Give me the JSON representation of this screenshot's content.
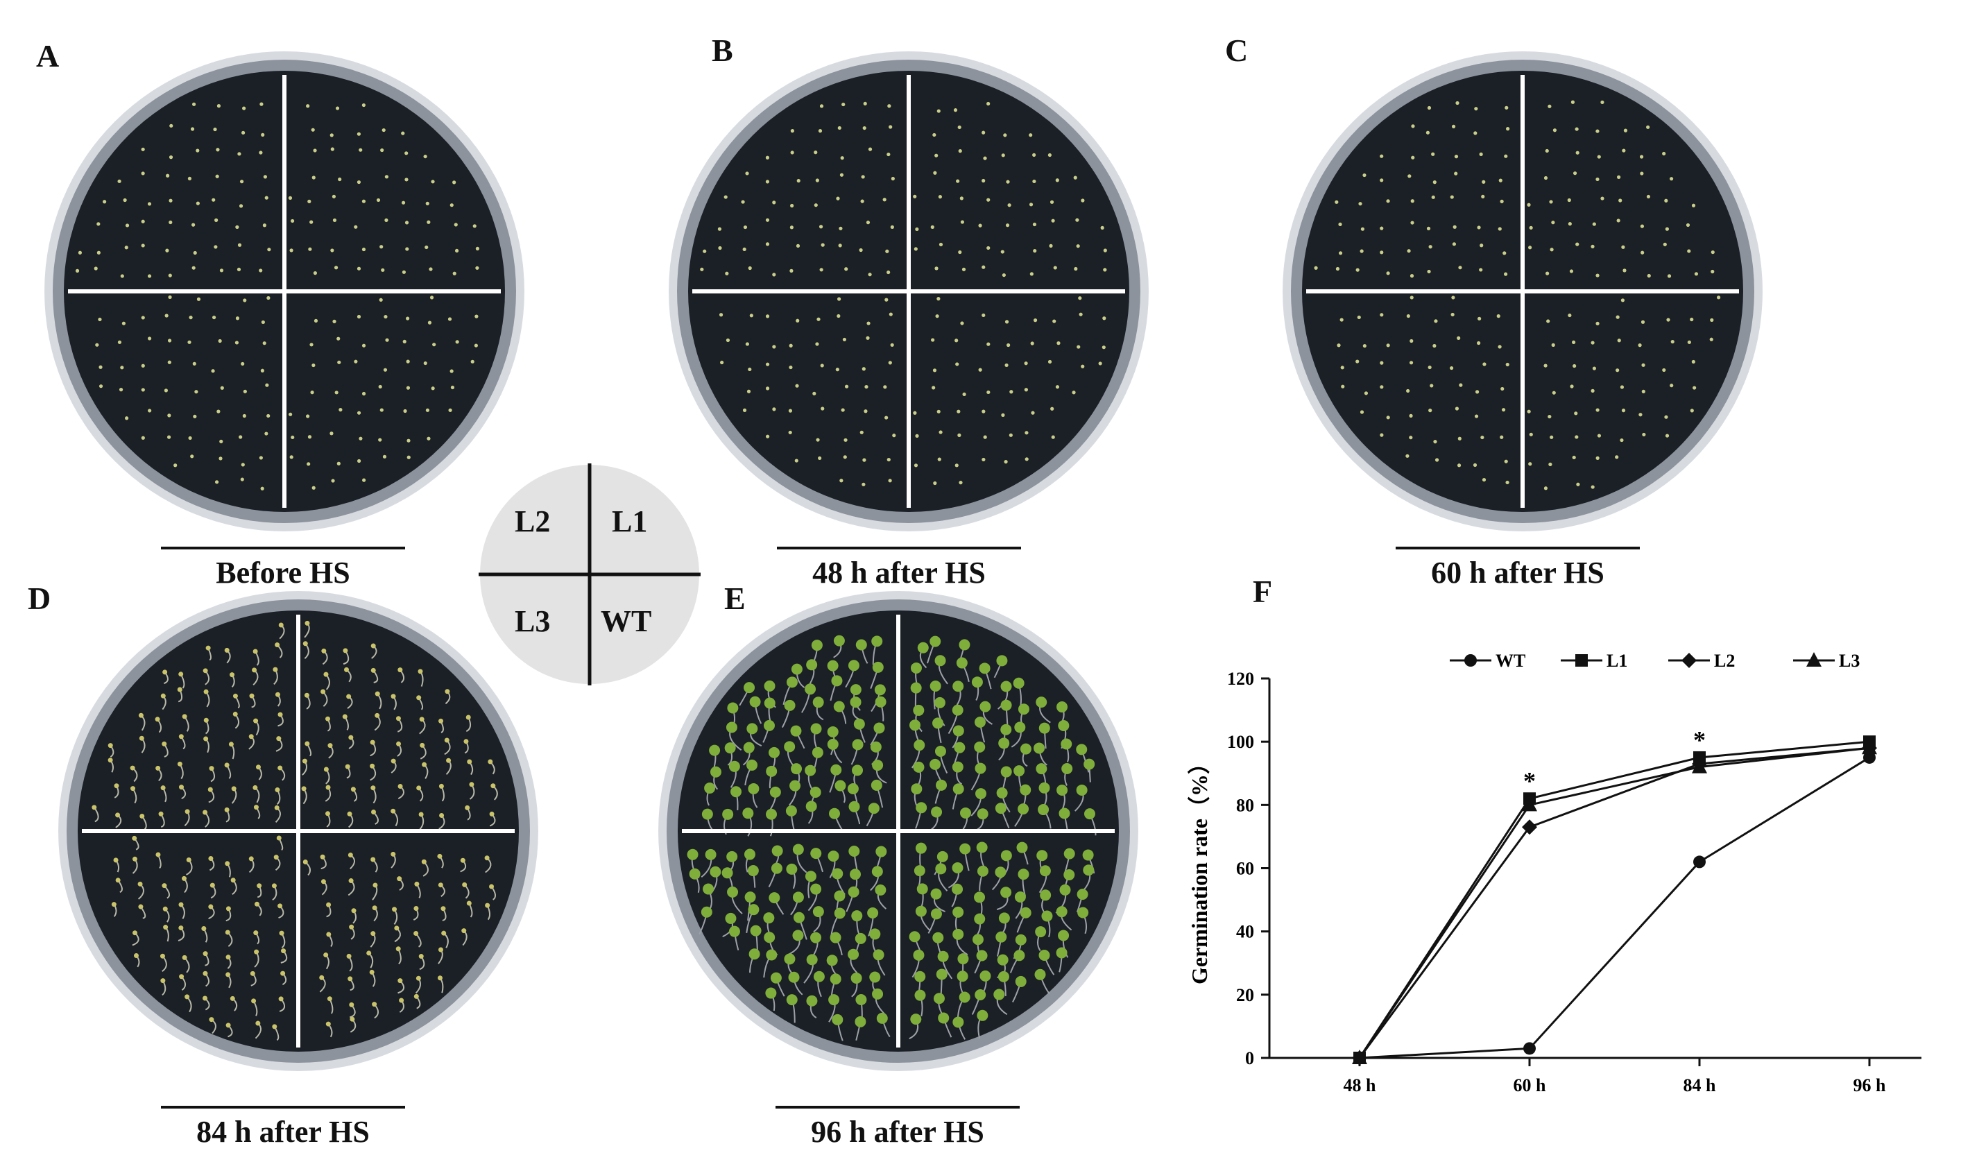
{
  "panels": {
    "a": {
      "letter": "A",
      "caption": "Before HS"
    },
    "b": {
      "letter": "B",
      "caption": "48 h after HS"
    },
    "c": {
      "letter": "C",
      "caption": "60 h after HS"
    },
    "d": {
      "letter": "D",
      "caption": "84 h after HS"
    },
    "e": {
      "letter": "E",
      "caption": "96 h after HS"
    },
    "f": {
      "letter": "F"
    }
  },
  "plate_key": {
    "top_left": "L2",
    "top_right": "L1",
    "bottom_left": "L3",
    "bottom_right": "WT"
  },
  "colors": {
    "plate_bg": "#1b1f26",
    "seed": "#c9cf8a",
    "seedling": "#7fae3a",
    "key_bg": "#e3e3e3",
    "line": "#111111"
  },
  "chart_data": {
    "type": "line",
    "x": [
      "48 h",
      "60 h",
      "84 h",
      "96 h"
    ],
    "ylabel": "Germination rate（%）",
    "xlabel": "",
    "ylim": [
      0,
      120
    ],
    "yticks": [
      0,
      20,
      40,
      60,
      80,
      100,
      120
    ],
    "series": [
      {
        "name": "WT",
        "marker": "circle",
        "values": [
          0,
          3,
          62,
          95
        ]
      },
      {
        "name": "L1",
        "marker": "square",
        "values": [
          0,
          82,
          95,
          100
        ]
      },
      {
        "name": "L2",
        "marker": "diamond",
        "values": [
          0,
          73,
          93,
          98
        ]
      },
      {
        "name": "L3",
        "marker": "triangle",
        "values": [
          0,
          80,
          92,
          98
        ]
      }
    ],
    "annotations": [
      {
        "text": "*",
        "x": "60 h",
        "y": 85
      },
      {
        "text": "*",
        "x": "84 h",
        "y": 98
      }
    ],
    "legend": "top"
  }
}
